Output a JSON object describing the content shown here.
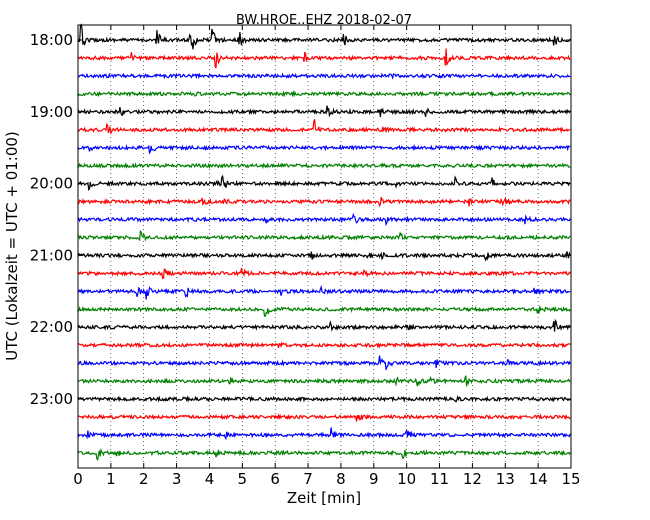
{
  "chart_data": {
    "type": "line",
    "title": "BW.HROE..EHZ 2018-02-07",
    "xlabel": "Zeit  [min]",
    "ylabel": "UTC (Lokalzeit = UTC + 01:00)",
    "xlim": [
      0,
      15
    ],
    "x_ticks": [
      0,
      1,
      2,
      3,
      4,
      5,
      6,
      7,
      8,
      9,
      10,
      11,
      12,
      13,
      14,
      15
    ],
    "x_tick_labels": [
      "0",
      "1",
      "2",
      "3",
      "4",
      "5",
      "6",
      "7",
      "8",
      "9",
      "10",
      "11",
      "12",
      "13",
      "14",
      "15"
    ],
    "y_tick_labels": [
      "18:00",
      "19:00",
      "20:00",
      "21:00",
      "22:00",
      "23:00"
    ],
    "y_tick_traces": [
      0,
      4,
      8,
      12,
      16,
      20
    ],
    "trace_interval_min": 15,
    "vertical_grid": "dotted",
    "series_colors": [
      "#000000",
      "#ff0000",
      "#0000ff",
      "#008000"
    ],
    "traces": [
      {
        "start": "18:00",
        "events": [
          [
            0.1,
            2.6
          ],
          [
            2.4,
            2.2
          ],
          [
            3.4,
            2.0
          ],
          [
            3.5,
            1.4
          ],
          [
            4.1,
            2.4
          ],
          [
            4.9,
            2.6
          ],
          [
            8.1,
            1.1
          ],
          [
            14.5,
            1.1
          ]
        ]
      },
      {
        "start": "18:15",
        "events": [
          [
            1.6,
            1.2
          ],
          [
            4.2,
            2.0
          ],
          [
            6.9,
            1.1
          ],
          [
            11.2,
            1.5
          ]
        ]
      },
      {
        "start": "18:30",
        "events": [
          [
            9.5,
            0.6
          ]
        ]
      },
      {
        "start": "18:45",
        "events": [
          [
            3.5,
            0.7
          ]
        ]
      },
      {
        "start": "19:00",
        "events": [
          [
            1.3,
            0.8
          ],
          [
            7.6,
            1.2
          ],
          [
            9.2,
            0.9
          ],
          [
            10.6,
            0.7
          ]
        ]
      },
      {
        "start": "19:15",
        "events": [
          [
            0.9,
            1.4
          ],
          [
            7.2,
            1.7
          ],
          [
            9.3,
            0.6
          ]
        ]
      },
      {
        "start": "19:30",
        "events": [
          [
            0.3,
            0.8
          ],
          [
            2.2,
            1.4
          ]
        ]
      },
      {
        "start": "19:45",
        "events": []
      },
      {
        "start": "20:00",
        "events": [
          [
            0.35,
            1.6
          ],
          [
            4.2,
            1.6
          ],
          [
            4.4,
            2.0
          ],
          [
            9.7,
            0.8
          ],
          [
            11.5,
            0.9
          ],
          [
            12.6,
            1.0
          ]
        ]
      },
      {
        "start": "20:15",
        "events": [
          [
            3.8,
            1.0
          ],
          [
            4.4,
            1.0
          ],
          [
            9.2,
            0.8
          ],
          [
            11.9,
            0.9
          ],
          [
            12.9,
            1.2
          ]
        ]
      },
      {
        "start": "20:30",
        "events": [
          [
            5.7,
            0.8
          ],
          [
            8.4,
            1.0
          ],
          [
            9.4,
            0.9
          ],
          [
            13.6,
            0.8
          ]
        ]
      },
      {
        "start": "20:45",
        "events": [
          [
            1.9,
            1.0
          ],
          [
            9.8,
            0.7
          ]
        ]
      },
      {
        "start": "21:00",
        "events": [
          [
            7.1,
            0.8
          ],
          [
            8.8,
            0.7
          ],
          [
            9.2,
            0.8
          ],
          [
            12.4,
            0.8
          ],
          [
            14.9,
            0.7
          ]
        ]
      },
      {
        "start": "21:15",
        "events": [
          [
            2.6,
            1.1
          ],
          [
            5.0,
            1.4
          ],
          [
            8.7,
            0.6
          ]
        ]
      },
      {
        "start": "21:30",
        "events": [
          [
            1.8,
            1.0
          ],
          [
            2.1,
            1.5
          ],
          [
            3.3,
            0.9
          ],
          [
            6.2,
            0.7
          ],
          [
            7.4,
            0.6
          ],
          [
            13.9,
            0.7
          ]
        ]
      },
      {
        "start": "21:45",
        "events": [
          [
            5.7,
            2.1
          ],
          [
            14.0,
            0.8
          ]
        ]
      },
      {
        "start": "22:00",
        "events": [
          [
            7.7,
            1.0
          ],
          [
            10.0,
            0.7
          ],
          [
            14.5,
            1.4
          ]
        ]
      },
      {
        "start": "22:15",
        "events": [
          [
            6.1,
            0.5
          ]
        ]
      },
      {
        "start": "22:30",
        "events": [
          [
            9.2,
            1.1
          ],
          [
            9.4,
            0.9
          ],
          [
            10.9,
            0.6
          ],
          [
            13.1,
            0.6
          ]
        ]
      },
      {
        "start": "22:45",
        "events": [
          [
            4.6,
            0.9
          ],
          [
            9.7,
            0.6
          ],
          [
            10.3,
            1.0
          ],
          [
            10.7,
            0.9
          ],
          [
            11.8,
            1.0
          ]
        ]
      },
      {
        "start": "23:00",
        "events": [
          [
            11.5,
            0.5
          ]
        ]
      },
      {
        "start": "23:15",
        "events": [
          [
            8.5,
            0.6
          ]
        ]
      },
      {
        "start": "23:30",
        "events": [
          [
            0.3,
            0.6
          ],
          [
            4.5,
            0.5
          ],
          [
            7.7,
            1.4
          ],
          [
            10.0,
            1.1
          ]
        ]
      },
      {
        "start": "23:45",
        "events": [
          [
            0.6,
            1.1
          ],
          [
            1.2,
            0.7
          ],
          [
            4.2,
            0.9
          ],
          [
            9.9,
            1.1
          ]
        ]
      }
    ]
  }
}
